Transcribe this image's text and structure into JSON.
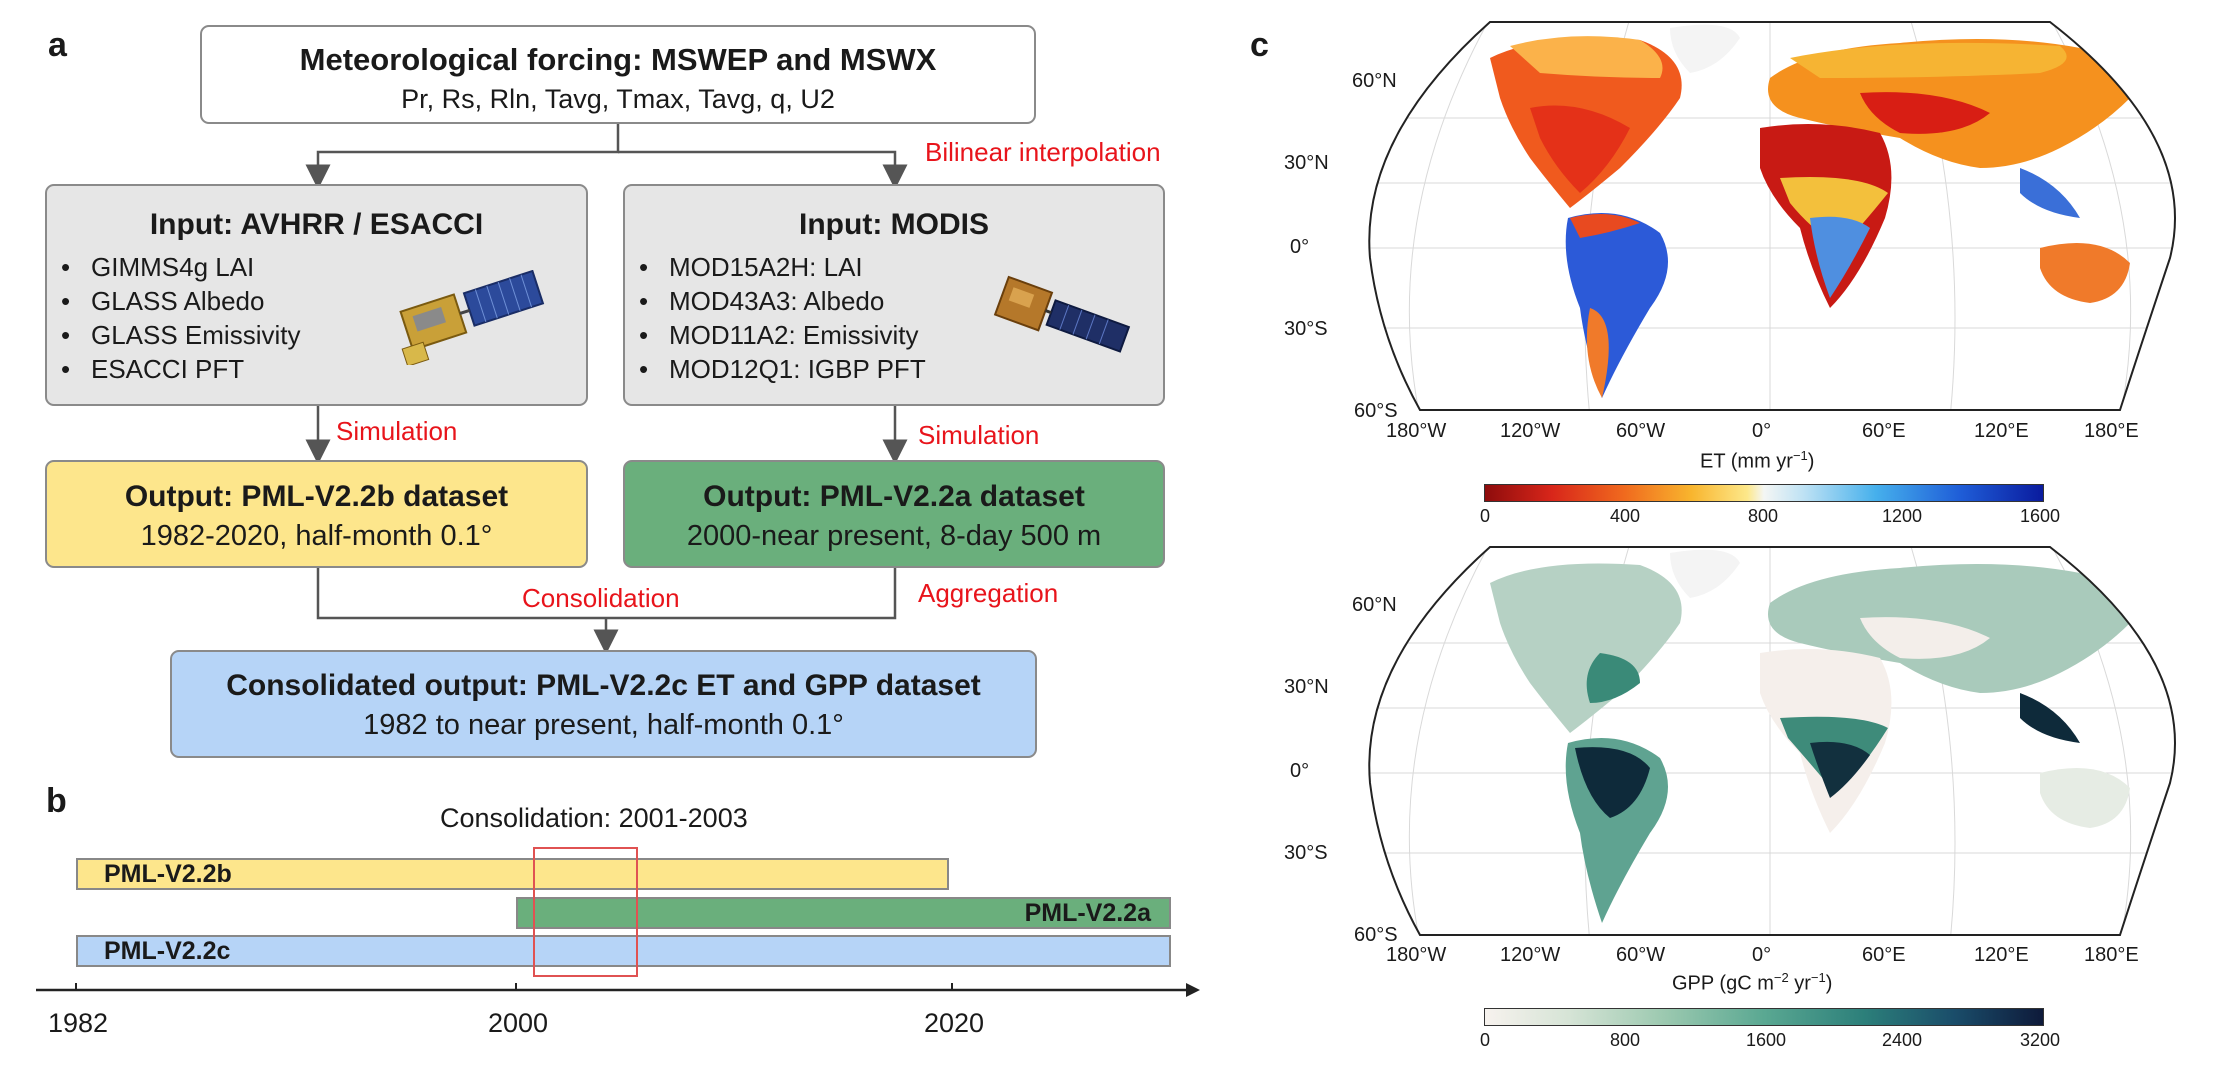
{
  "panel_a": {
    "label": "a",
    "forcing_title": "Meteorological forcing: MSWEP and MSWX",
    "forcing_vars": "Pr, Rs, Rln, Tavg, Tmax, Tavg, q, U2",
    "bilinear_label": "Bilinear interpolation",
    "input_left": {
      "title": "Input: AVHRR / ESACCI",
      "items": [
        "GIMMS4g  LAI",
        "GLASS Albedo",
        "GLASS Emissivity",
        "ESACCI PFT"
      ]
    },
    "input_right": {
      "title": "Input: MODIS",
      "items": [
        "MOD15A2H: LAI",
        "MOD43A3: Albedo",
        "MOD11A2: Emissivity",
        "MOD12Q1: IGBP PFT"
      ]
    },
    "simulation_label": "Simulation",
    "output_left": {
      "title": "Output: PML-V2.2b dataset",
      "subtitle": "1982-2020, half-month 0.1°"
    },
    "output_right": {
      "title": "Output: PML-V2.2a dataset",
      "subtitle": "2000-near present, 8-day 500 m"
    },
    "consolidation_label": "Consolidation",
    "aggregation_label": "Aggregation",
    "consolidated": {
      "title": "Consolidated output: PML-V2.2c ET and GPP dataset",
      "subtitle": "1982 to near present, half-month 0.1°"
    },
    "colors": {
      "gray": "#e6e6e6",
      "yellow": "#fde68c",
      "green": "#6aaf7c",
      "blue": "#b6d4f7",
      "red": "#e8141b"
    }
  },
  "panel_b": {
    "label": "b",
    "consolidation_title": "Consolidation: 2001-2003",
    "bars": [
      "PML-V2.2b",
      "PML-V2.2a",
      "PML-V2.2c"
    ],
    "axis_ticks": [
      "1982",
      "2000",
      "2020"
    ]
  },
  "panel_c": {
    "label": "c",
    "lat_labels": [
      "60°N",
      "30°N",
      "0°",
      "30°S",
      "60°S"
    ],
    "lon_labels": [
      "180°W",
      "120°W",
      "60°W",
      "0°",
      "60°E",
      "120°E",
      "180°E"
    ],
    "et": {
      "label_prefix": "ET (mm yr",
      "label_sup": "−1",
      "label_suffix": ")",
      "ticks": [
        "0",
        "400",
        "800",
        "1200",
        "1600"
      ]
    },
    "gpp": {
      "label_prefix": "GPP (gC m",
      "label_sup1": "−2",
      "label_mid": " yr",
      "label_sup2": "−1",
      "label_suffix": ")",
      "ticks": [
        "0",
        "800",
        "1600",
        "2400",
        "3200"
      ]
    }
  }
}
